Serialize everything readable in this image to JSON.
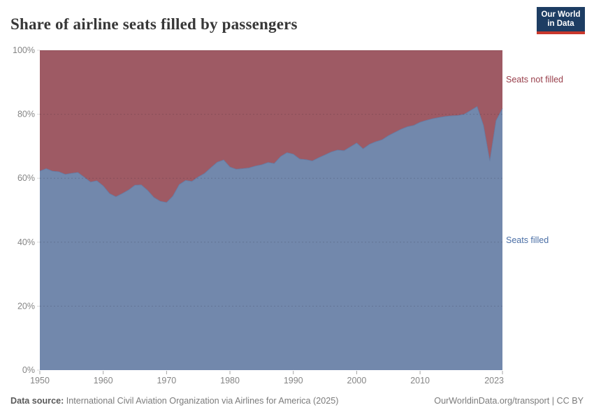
{
  "header": {
    "title": "Share of airline seats filled by passengers",
    "logo": {
      "line1": "Our World",
      "line2": "in Data"
    }
  },
  "chart_data": {
    "type": "area",
    "stacked": true,
    "normalized_to_100pct": true,
    "title": "Share of airline seats filled by passengers",
    "xlabel": "",
    "ylabel": "",
    "ylim": [
      0,
      100
    ],
    "xlim": [
      1950,
      2023
    ],
    "grid": "dashed-horizontal",
    "legend_position": "right-inline-labels",
    "y_tick_labels": [
      "0%",
      "20%",
      "40%",
      "60%",
      "80%",
      "100%"
    ],
    "y_tick_values": [
      0,
      20,
      40,
      60,
      80,
      100
    ],
    "x_tick_labels": [
      "1950",
      "1960",
      "1970",
      "1980",
      "1990",
      "2000",
      "2010",
      "2023"
    ],
    "x_tick_values": [
      1950,
      1960,
      1970,
      1980,
      1990,
      2000,
      2010,
      2023
    ],
    "years": [
      1950,
      1951,
      1952,
      1953,
      1954,
      1955,
      1956,
      1957,
      1958,
      1959,
      1960,
      1961,
      1962,
      1963,
      1964,
      1965,
      1966,
      1967,
      1968,
      1969,
      1970,
      1971,
      1972,
      1973,
      1974,
      1975,
      1976,
      1977,
      1978,
      1979,
      1980,
      1981,
      1982,
      1983,
      1984,
      1985,
      1986,
      1987,
      1988,
      1989,
      1990,
      1991,
      1992,
      1993,
      1994,
      1995,
      1996,
      1997,
      1998,
      1999,
      2000,
      2001,
      2002,
      2003,
      2004,
      2005,
      2006,
      2007,
      2008,
      2009,
      2010,
      2011,
      2012,
      2013,
      2014,
      2015,
      2016,
      2017,
      2018,
      2019,
      2020,
      2021,
      2022,
      2023
    ],
    "series": [
      {
        "name": "Seats filled",
        "color": "#7288AC",
        "label_color": "#4A6EA5",
        "values": [
          62.2,
          63,
          62.2,
          62,
          61.2,
          61.5,
          61.8,
          60.3,
          58.8,
          59.2,
          57.6,
          55.2,
          54.2,
          55.2,
          56.3,
          57.8,
          57.9,
          56.2,
          54,
          52.8,
          52.4,
          54.4,
          58,
          59.3,
          59,
          60.4,
          61.5,
          63.3,
          65,
          65.7,
          63.5,
          62.8,
          63,
          63.2,
          63.8,
          64.2,
          64.9,
          64.6,
          66.8,
          68,
          67.5,
          66,
          65.8,
          65.4,
          66.4,
          67.3,
          68.2,
          68.8,
          68.6,
          69.8,
          71,
          69.2,
          70.6,
          71.4,
          72,
          73.3,
          74.3,
          75.3,
          76.1,
          76.5,
          77.5,
          78.1,
          78.6,
          79,
          79.3,
          79.5,
          79.6,
          80,
          81.2,
          82.4,
          76.5,
          65.4,
          78,
          81.8
        ]
      },
      {
        "name": "Seats not filled",
        "color": "#9E5A64",
        "label_color": "#983E4A",
        "derived": "100 minus Seats filled"
      }
    ],
    "axis_text_color": "#858585",
    "gridline_color_rgba": "rgba(30,30,45,0.18)"
  },
  "footer": {
    "source_prefix": "Data source:",
    "source_text": "International Civil Aviation Organization via Airlines for America (2025)",
    "credit": "OurWorldinData.org/transport | CC BY"
  }
}
